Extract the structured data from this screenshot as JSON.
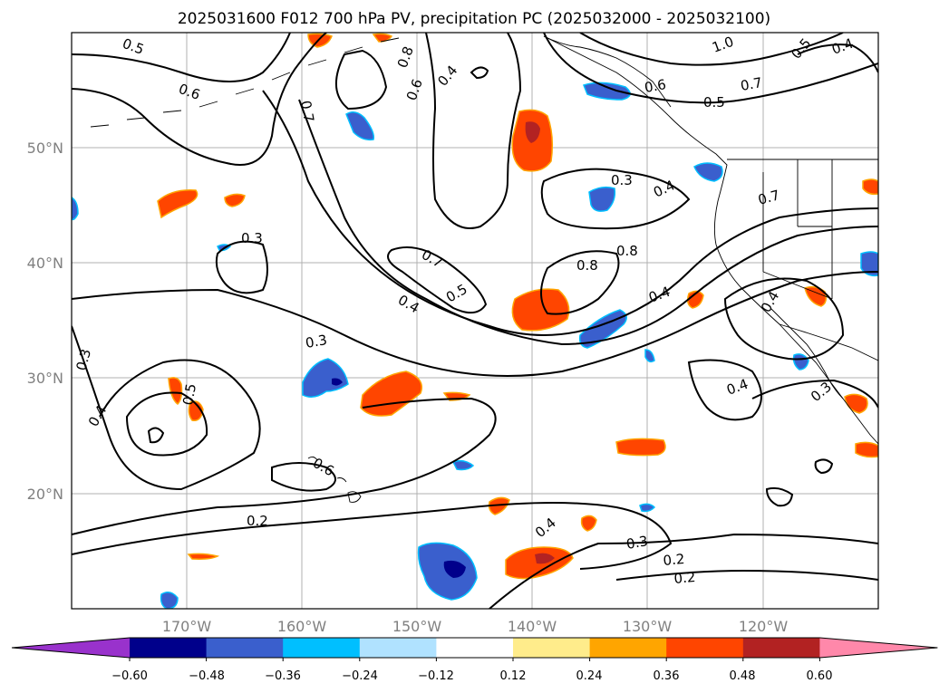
{
  "title": "2025031600 F012 700 hPa PV, precipitation PC (2025032000 - 2025032100)",
  "map": {
    "lat_labels": [
      "50°N",
      "40°N",
      "30°N",
      "20°N"
    ],
    "lon_labels": [
      "170°W",
      "160°W",
      "150°W",
      "140°W",
      "130°W",
      "120°W"
    ],
    "extent": {
      "lon_min": -180,
      "lon_max": -110,
      "lat_min": 10,
      "lat_max": 60
    },
    "grid": true,
    "contour_labels": [
      "0.5",
      "0.6",
      "0.7",
      "0.8",
      "0.4",
      "0.6",
      "1.0",
      "0.5",
      "0.4",
      "0.6",
      "0.7",
      "0.5",
      "0.3",
      "0.4",
      "0.7",
      "0.3",
      "0.7",
      "0.8",
      "0.8",
      "0.5",
      "0.4",
      "0.4",
      "0.3",
      "0.3",
      "0.4",
      "0.4",
      "0.5",
      "0.4",
      "0.2",
      "0.4",
      "0.3",
      "0.2",
      "0.2",
      "0.3",
      "0.6"
    ]
  },
  "colorbar": {
    "ticks": [
      "−0.60",
      "−0.48",
      "−0.36",
      "−0.24",
      "−0.12",
      "0.12",
      "0.24",
      "0.36",
      "0.48",
      "0.60"
    ],
    "colors": [
      "#9932cc",
      "#00008b",
      "#3a5fcd",
      "#00bfff",
      "#b0e2ff",
      "#ffffff",
      "#ffec8b",
      "#ffa500",
      "#ff4500",
      "#b22222",
      "#ff88aa"
    ],
    "extend": "both"
  },
  "colors": {
    "contour": "#000000",
    "coast": "#000000",
    "grid": "#b0b0b0"
  }
}
